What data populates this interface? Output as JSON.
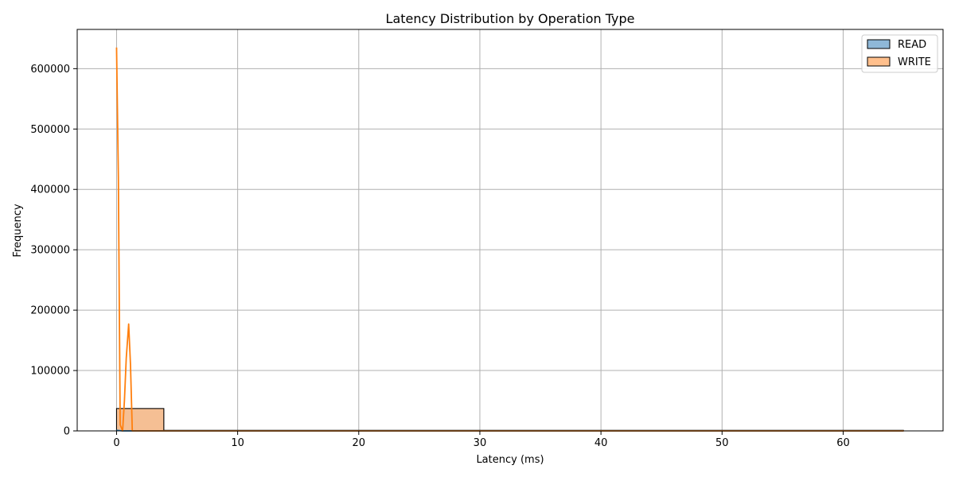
{
  "chart_data": {
    "type": "histogram",
    "title": "Latency Distribution by Operation Type",
    "xlabel": "Latency (ms)",
    "ylabel": "Frequency",
    "xlim": [
      -3.25,
      68.25
    ],
    "ylim": [
      0,
      665000
    ],
    "xticks": [
      0,
      10,
      20,
      30,
      40,
      50,
      60
    ],
    "yticks": [
      0,
      100000,
      200000,
      300000,
      400000,
      500000,
      600000
    ],
    "grid": true,
    "legend_position": "top-right",
    "colors": {
      "read_fill": "#8fb8d8",
      "write_fill": "#ffbf8c",
      "write_line": "#ff7f0e",
      "grid": "#b0b0b0"
    },
    "series": [
      {
        "name": "READ",
        "bins": [
          {
            "x0": 0,
            "x1": 3.9,
            "value": 37000
          },
          {
            "x0": 3.9,
            "x1": 65,
            "value": 0
          }
        ],
        "kde": {
          "x": [
            0,
            0.5,
            1,
            2,
            4,
            65
          ],
          "y": [
            1000,
            0,
            0,
            0,
            0,
            0
          ]
        }
      },
      {
        "name": "WRITE",
        "bins": [
          {
            "x0": 0,
            "x1": 3.9,
            "value": 37000
          },
          {
            "x0": 3.9,
            "x1": 65,
            "value": 0
          }
        ],
        "kde": {
          "x": [
            0,
            0.15,
            0.3,
            0.5,
            0.65,
            0.8,
            1.0,
            1.15,
            1.3,
            1.6,
            2.0,
            4,
            10,
            20,
            30,
            40,
            50,
            60,
            65
          ],
          "y": [
            635000,
            420000,
            10000,
            0,
            50000,
            120000,
            177000,
            110000,
            0,
            0,
            0,
            0,
            0,
            0,
            0,
            0,
            0,
            0,
            0
          ]
        }
      }
    ]
  }
}
